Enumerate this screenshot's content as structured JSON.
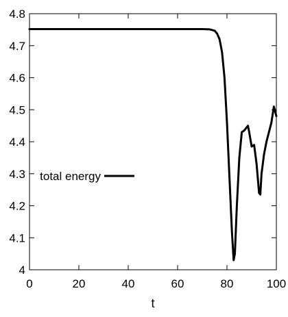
{
  "chart_data": {
    "type": "line",
    "title": "",
    "xlabel": "t",
    "ylabel": "",
    "xlim": [
      0,
      100
    ],
    "ylim": [
      4.0,
      4.8
    ],
    "x_ticks": [
      "0",
      "20",
      "40",
      "60",
      "80",
      "100"
    ],
    "y_ticks": [
      "4",
      "4.1",
      "4.2",
      "4.3",
      "4.4",
      "4.5",
      "4.6",
      "4.7",
      "4.8"
    ],
    "grid": false,
    "legend_position": "left-middle",
    "series": [
      {
        "name": "total energy",
        "color": "#000000",
        "x": [
          0,
          10,
          20,
          30,
          40,
          50,
          60,
          70,
          73,
          75,
          76,
          77,
          78,
          79,
          80,
          81,
          82,
          82.7,
          83.2,
          84,
          85,
          86,
          87,
          88,
          88.5,
          89,
          90,
          91,
          92,
          93,
          93.5,
          94,
          95,
          96,
          97,
          98,
          99,
          100
        ],
        "y": [
          4.752,
          4.752,
          4.752,
          4.752,
          4.752,
          4.752,
          4.752,
          4.752,
          4.751,
          4.747,
          4.738,
          4.72,
          4.68,
          4.6,
          4.46,
          4.29,
          4.12,
          4.03,
          4.05,
          4.2,
          4.35,
          4.43,
          4.435,
          4.445,
          4.45,
          4.43,
          4.385,
          4.39,
          4.33,
          4.24,
          4.235,
          4.3,
          4.36,
          4.4,
          4.43,
          4.46,
          4.51,
          4.48
        ]
      }
    ]
  }
}
